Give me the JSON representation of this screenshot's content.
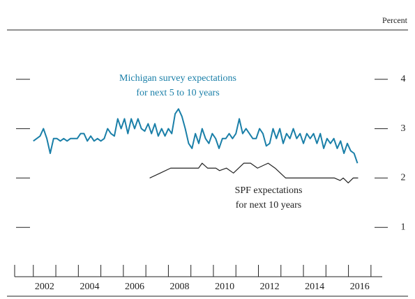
{
  "chart_data": {
    "type": "line",
    "unit_label": "Percent",
    "annotations": [
      {
        "lines": [
          "Michigan survey expectations",
          "for next 5 to 10 years"
        ],
        "series": 0
      },
      {
        "lines": [
          "SPF expectations",
          "for next 10 years"
        ],
        "series": 1
      }
    ],
    "xlim": [
      2001.17,
      2017.5
    ],
    "xticks": [
      {
        "value": 2002.5,
        "label": "2002"
      },
      {
        "value": 2004.5,
        "label": "2004"
      },
      {
        "value": 2006.5,
        "label": "2006"
      },
      {
        "value": 2008.5,
        "label": "2008"
      },
      {
        "value": 2010.5,
        "label": "2010"
      },
      {
        "value": 2012.5,
        "label": "2012"
      },
      {
        "value": 2014.5,
        "label": "2014"
      },
      {
        "value": 2016.5,
        "label": "2016"
      }
    ],
    "xminor_ticks": [
      2002,
      2003,
      2004,
      2005,
      2006,
      2007,
      2008,
      2009,
      2010,
      2011,
      2012,
      2013,
      2014,
      2015,
      2016,
      2017
    ],
    "ylim": [
      0,
      5
    ],
    "yticks": [
      1,
      2,
      3,
      4
    ],
    "series": [
      {
        "color": "#1a7fa8",
        "x": [
          2002,
          2002.15,
          2002.3,
          2002.45,
          2002.6,
          2002.75,
          2002.9,
          2003.05,
          2003.2,
          2003.35,
          2003.5,
          2003.65,
          2003.8,
          2003.95,
          2004.1,
          2004.25,
          2004.4,
          2004.55,
          2004.7,
          2004.85,
          2005,
          2005.15,
          2005.3,
          2005.45,
          2005.6,
          2005.75,
          2005.9,
          2006.05,
          2006.2,
          2006.35,
          2006.5,
          2006.65,
          2006.8,
          2006.95,
          2007.1,
          2007.25,
          2007.4,
          2007.55,
          2007.7,
          2007.85,
          2008,
          2008.15,
          2008.3,
          2008.45,
          2008.6,
          2008.75,
          2008.9,
          2009.05,
          2009.2,
          2009.35,
          2009.5,
          2009.65,
          2009.8,
          2009.95,
          2010.1,
          2010.25,
          2010.4,
          2010.55,
          2010.7,
          2010.85,
          2011,
          2011.15,
          2011.3,
          2011.45,
          2011.6,
          2011.75,
          2011.9,
          2012.05,
          2012.2,
          2012.35,
          2012.5,
          2012.65,
          2012.8,
          2012.95,
          2013.1,
          2013.25,
          2013.4,
          2013.55,
          2013.7,
          2013.85,
          2014,
          2014.15,
          2014.3,
          2014.45,
          2014.6,
          2014.75,
          2014.9,
          2015.05,
          2015.2,
          2015.35,
          2015.5,
          2015.65,
          2015.8,
          2015.95,
          2016.1,
          2016.25,
          2016.4
        ],
        "values": [
          2.75,
          2.8,
          2.85,
          3.0,
          2.8,
          2.5,
          2.8,
          2.8,
          2.75,
          2.8,
          2.75,
          2.8,
          2.8,
          2.8,
          2.9,
          2.9,
          2.75,
          2.85,
          2.75,
          2.8,
          2.75,
          2.8,
          3.0,
          2.9,
          2.85,
          3.2,
          3.0,
          3.2,
          2.9,
          3.2,
          3.0,
          3.2,
          3.0,
          2.95,
          3.1,
          2.9,
          3.1,
          2.85,
          3.0,
          2.85,
          3.0,
          2.9,
          3.3,
          3.4,
          3.25,
          3.0,
          2.7,
          2.6,
          2.9,
          2.7,
          3.0,
          2.8,
          2.7,
          2.9,
          2.8,
          2.6,
          2.8,
          2.8,
          2.9,
          2.8,
          2.9,
          3.2,
          2.9,
          3.0,
          2.9,
          2.8,
          2.8,
          3.0,
          2.9,
          2.65,
          2.7,
          3.0,
          2.8,
          3.0,
          2.7,
          2.9,
          2.8,
          3.0,
          2.8,
          2.9,
          2.7,
          2.9,
          2.8,
          2.9,
          2.7,
          2.9,
          2.6,
          2.8,
          2.7,
          2.8,
          2.6,
          2.75,
          2.5,
          2.7,
          2.55,
          2.5,
          2.3
        ]
      },
      {
        "color": "#222222",
        "x": [
          2007.17,
          2007.64,
          2008.1,
          2009.34,
          2009.5,
          2009.74,
          2010.11,
          2010.27,
          2010.58,
          2010.89,
          2011.35,
          2011.65,
          2011.96,
          2012.43,
          2012.74,
          2013.21,
          2015.38,
          2015.63,
          2015.77,
          2015.99,
          2016.21,
          2016.43
        ],
        "values": [
          2.0,
          2.1,
          2.2,
          2.2,
          2.3,
          2.2,
          2.2,
          2.15,
          2.2,
          2.1,
          2.3,
          2.3,
          2.2,
          2.3,
          2.2,
          2.0,
          2.0,
          1.95,
          2.0,
          1.9,
          2.0,
          2.0
        ]
      }
    ]
  }
}
